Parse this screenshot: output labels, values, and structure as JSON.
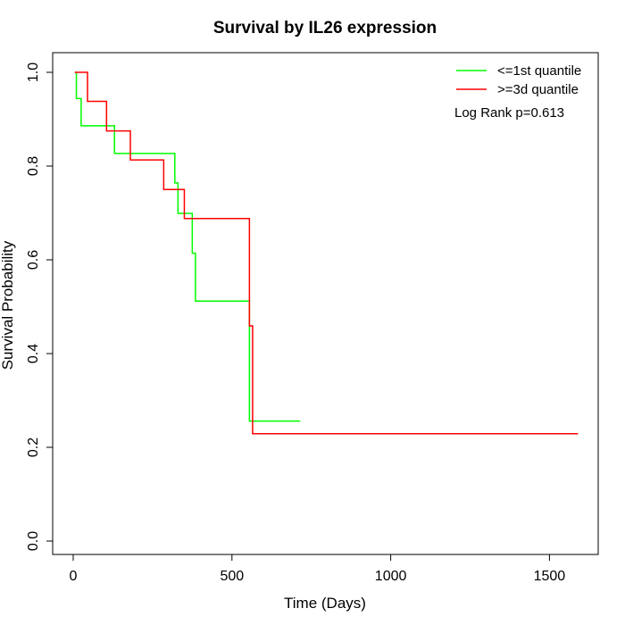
{
  "chart_data": {
    "type": "line",
    "title": "Survival by IL26 expression",
    "xlabel": "Time (Days)",
    "ylabel": "Survival Probability",
    "xlim": [
      0,
      1600
    ],
    "ylim": [
      0,
      1.0
    ],
    "x_ticks": [
      0,
      500,
      1000,
      1500
    ],
    "y_ticks": [
      "0.0",
      "0.2",
      "0.4",
      "0.6",
      "0.8",
      "1.0"
    ],
    "grid": false,
    "legend_position": "top-right",
    "step": true,
    "series": [
      {
        "name": "<=1st quantile",
        "color": "#00ff00",
        "x": [
          5,
          10,
          25,
          130,
          320,
          330,
          375,
          385,
          550,
          555,
          715
        ],
        "y": [
          1.0,
          0.944,
          0.886,
          0.827,
          0.764,
          0.699,
          0.614,
          0.512,
          0.512,
          0.256,
          0.256
        ]
      },
      {
        "name": ">=3d quantile",
        "color": "#ff0000",
        "x": [
          5,
          45,
          105,
          180,
          285,
          350,
          555,
          565,
          1590
        ],
        "y": [
          1.0,
          0.938,
          0.875,
          0.813,
          0.75,
          0.688,
          0.459,
          0.229,
          0.229
        ]
      }
    ],
    "annotation": "Log Rank p=0.613"
  }
}
